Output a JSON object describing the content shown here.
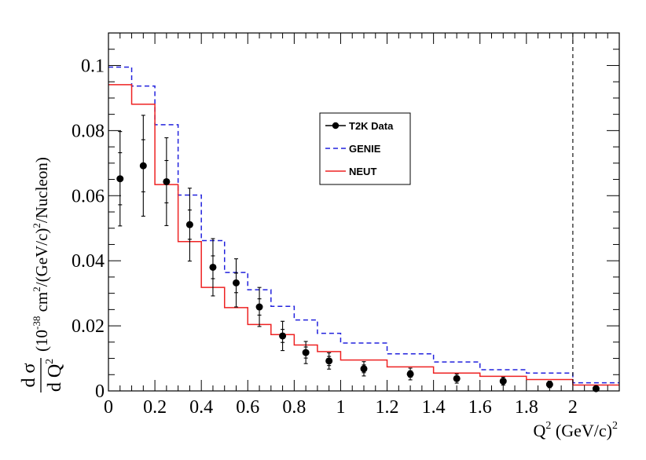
{
  "chart_data": {
    "type": "line",
    "title": "",
    "xlabel": {
      "base": "Q",
      "sup": "2",
      "units_base": "(GeV/c)",
      "units_sup": "2"
    },
    "ylabel": {
      "frac_num": "d σ",
      "frac_den_base": "d Q",
      "frac_den_sup": "2",
      "units_pre": "(10",
      "units_exp": "-38",
      "units_mid": " cm",
      "units_sup2": "2",
      "units_mid2": "/(GeV/c)",
      "units_sup3": "2",
      "units_post": "/Nucleon)"
    },
    "xlim": [
      0,
      2.2
    ],
    "ylim": [
      0,
      0.11
    ],
    "x_ticks": [
      {
        "value": 0,
        "label": "0"
      },
      {
        "value": 0.2,
        "label": "0.2"
      },
      {
        "value": 0.4,
        "label": "0.4"
      },
      {
        "value": 0.6,
        "label": "0.6"
      },
      {
        "value": 0.8,
        "label": "0.8"
      },
      {
        "value": 1.0,
        "label": "1"
      },
      {
        "value": 1.2,
        "label": "1.2"
      },
      {
        "value": 1.4,
        "label": "1.4"
      },
      {
        "value": 1.6,
        "label": "1.6"
      },
      {
        "value": 1.8,
        "label": "1.8"
      },
      {
        "value": 2.0,
        "label": "2"
      }
    ],
    "y_ticks": [
      {
        "value": 0,
        "label": "0"
      },
      {
        "value": 0.02,
        "label": "0.02"
      },
      {
        "value": 0.04,
        "label": "0.04"
      },
      {
        "value": 0.06,
        "label": "0.06"
      },
      {
        "value": 0.08,
        "label": "0.08"
      },
      {
        "value": 0.1,
        "label": "0.1"
      }
    ],
    "bin_edges": [
      0,
      0.1,
      0.2,
      0.3,
      0.4,
      0.5,
      0.6,
      0.7,
      0.8,
      0.9,
      1.0,
      1.2,
      1.4,
      1.6,
      1.8,
      2.0,
      2.2
    ],
    "vline_x": 2.0,
    "legend": {
      "position": "upper-center",
      "entries": [
        "T2K Data",
        "GENIE",
        "NEUT"
      ]
    },
    "series": [
      {
        "name": "T2K Data",
        "kind": "points",
        "color": "#000000",
        "x": [
          0.05,
          0.15,
          0.25,
          0.35,
          0.45,
          0.55,
          0.65,
          0.75,
          0.85,
          0.95,
          1.1,
          1.3,
          1.5,
          1.7,
          1.9,
          2.1
        ],
        "y": [
          0.0652,
          0.0692,
          0.0643,
          0.0511,
          0.038,
          0.0332,
          0.0258,
          0.0169,
          0.0118,
          0.0092,
          0.0068,
          0.0052,
          0.0038,
          0.003,
          0.002,
          0.0007
        ],
        "err_stat": [
          0.008,
          0.008,
          0.0065,
          0.0045,
          0.0035,
          0.003,
          0.0025,
          0.002,
          0.0017,
          0.0014,
          0.0012,
          0.001,
          0.0008,
          0.0007,
          0.0006,
          0.0004
        ],
        "err_tot": [
          0.0145,
          0.0155,
          0.0135,
          0.0112,
          0.0088,
          0.0074,
          0.006,
          0.0045,
          0.0034,
          0.0025,
          0.0022,
          0.0018,
          0.0014,
          0.0012,
          0.001,
          0.0006
        ]
      },
      {
        "name": "GENIE",
        "kind": "step",
        "color": "#2222dd",
        "dash": "6,4",
        "values": [
          0.0995,
          0.0937,
          0.0818,
          0.0602,
          0.0462,
          0.0364,
          0.0311,
          0.026,
          0.0218,
          0.0177,
          0.0147,
          0.0114,
          0.0089,
          0.0065,
          0.0055,
          0.0025
        ]
      },
      {
        "name": "NEUT",
        "kind": "step",
        "color": "#ee2222",
        "dash": "",
        "values": [
          0.0941,
          0.0881,
          0.0634,
          0.0459,
          0.0318,
          0.0256,
          0.0204,
          0.0173,
          0.0141,
          0.0121,
          0.0095,
          0.0074,
          0.0055,
          0.0045,
          0.0035,
          0.0018
        ]
      }
    ]
  }
}
